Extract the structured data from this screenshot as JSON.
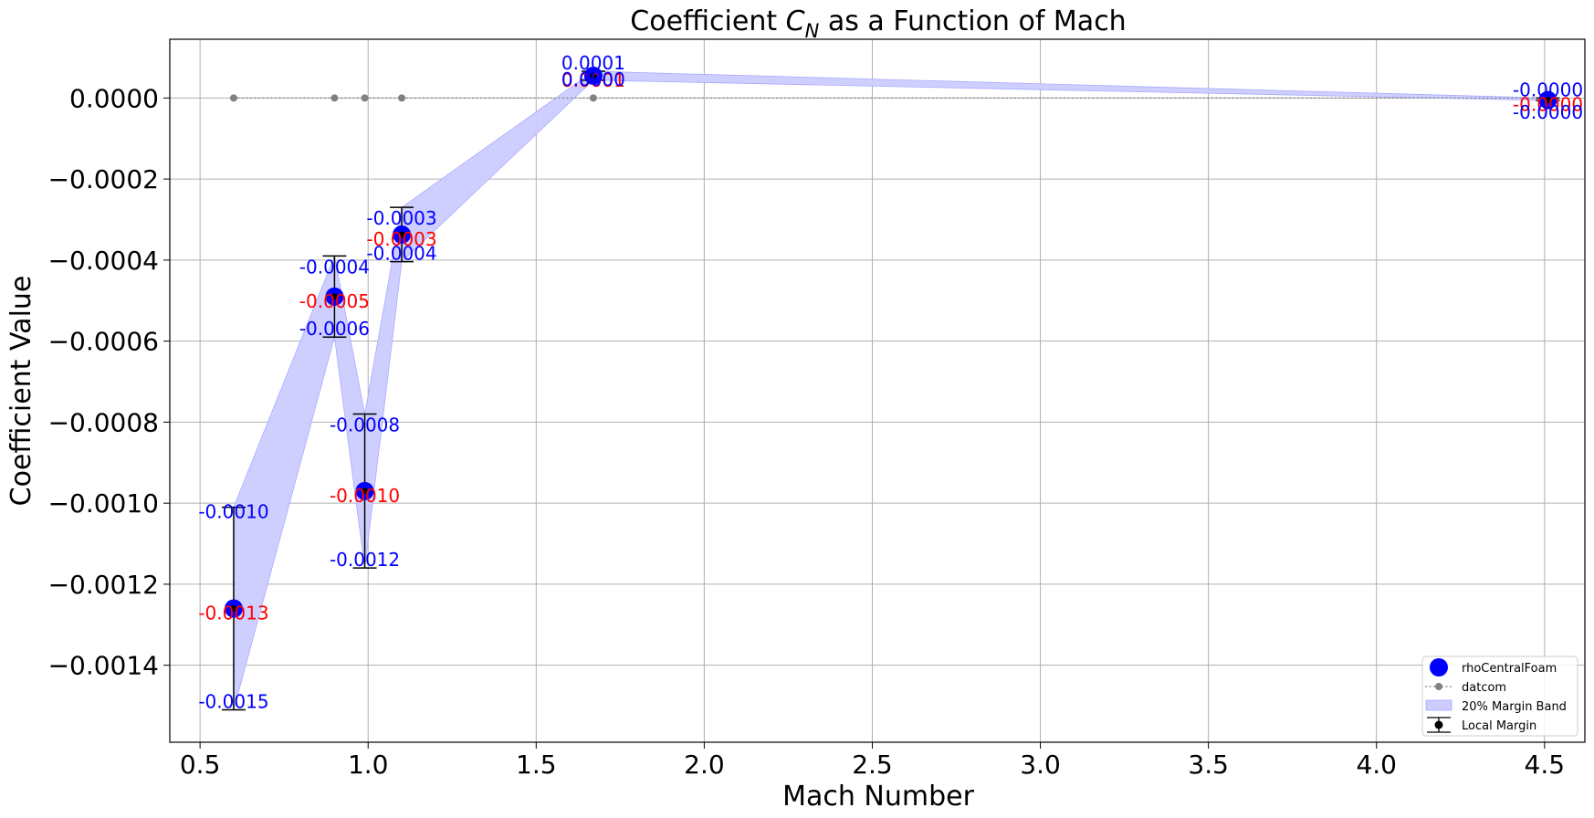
{
  "chart_data": {
    "type": "scatter",
    "title": "Coefficient C_N as a Function of Mach",
    "title_prefix": "Coefficient ",
    "title_symbol": "C",
    "title_subscript": "N",
    "title_suffix": " as a Function of Mach",
    "xlabel": "Mach Number",
    "ylabel": "Coefficient Value",
    "xlim": [
      0.41,
      4.62
    ],
    "ylim": [
      -0.00159,
      0.000145
    ],
    "xticks": [
      0.5,
      1.0,
      1.5,
      2.0,
      2.5,
      3.0,
      3.5,
      4.0,
      4.5
    ],
    "xtick_labels": [
      "0.5",
      "1.0",
      "1.5",
      "2.0",
      "2.5",
      "3.0",
      "3.5",
      "4.0",
      "4.5"
    ],
    "yticks": [
      0.0,
      -0.0002,
      -0.0004,
      -0.0006,
      -0.0008,
      -0.001,
      -0.0012,
      -0.0014
    ],
    "ytick_labels": [
      "0.0000",
      "−0.0002",
      "−0.0004",
      "−0.0006",
      "−0.0008",
      "−0.0010",
      "−0.0012",
      "−0.0014"
    ],
    "grid": true,
    "legend_position": "lower-right",
    "colors": {
      "rho": "#0000ff",
      "datcom": "#808080",
      "band": "#ccccff",
      "band_edge": "#aaaaff",
      "errorbar": "#000000",
      "ann_margin": "#0000ff",
      "ann_value": "#ff0000"
    },
    "series": [
      {
        "name": "rhoCentralFoam",
        "x": [
          0.6,
          0.9,
          0.99,
          1.1,
          1.67,
          4.51
        ],
        "y": [
          -0.00126,
          -0.00049,
          -0.00097,
          -0.000337,
          5.5e-05,
          -5e-06
        ]
      },
      {
        "name": "datcom",
        "x": [
          0.6,
          0.9,
          0.99,
          1.1,
          1.67,
          4.51
        ],
        "y": [
          0.0,
          0.0,
          0.0,
          0.0,
          0.0,
          0.0
        ]
      }
    ],
    "band": {
      "name": "20% Margin Band",
      "x": [
        0.6,
        0.9,
        0.99,
        1.1,
        1.67,
        4.51
      ],
      "upper": [
        -0.00101,
        -0.00039,
        -0.00078,
        -0.00027,
        6.6e-05,
        0.0
      ],
      "lower": [
        -0.00151,
        -0.00059,
        -0.00116,
        -0.000404,
        4.4e-05,
        -6e-06
      ]
    },
    "errorbars": {
      "name": "Local Margin",
      "x": [
        0.6,
        0.9,
        0.99,
        1.1,
        1.67,
        4.51
      ],
      "upper": [
        -0.00101,
        -0.00039,
        -0.00078,
        -0.00027,
        6.6e-05,
        0.0
      ],
      "lower": [
        -0.00151,
        -0.00059,
        -0.00116,
        -0.000404,
        4.4e-05,
        -6e-06
      ]
    },
    "annotations": [
      {
        "x": 0.6,
        "y": -0.00101,
        "text": "-0.0010",
        "kind": "margin",
        "dy": 12
      },
      {
        "x": 0.6,
        "y": -0.00126,
        "text": "-0.0013",
        "kind": "value",
        "dy": 12
      },
      {
        "x": 0.6,
        "y": -0.00151,
        "text": "-0.0015",
        "kind": "margin",
        "dy": -2
      },
      {
        "x": 0.9,
        "y": -0.00039,
        "text": "-0.0004",
        "kind": "margin",
        "dy": 19
      },
      {
        "x": 0.9,
        "y": -0.00049,
        "text": "-0.0005",
        "kind": "value",
        "dy": 12
      },
      {
        "x": 0.9,
        "y": -0.00059,
        "text": "-0.0006",
        "kind": "margin",
        "dy": -2
      },
      {
        "x": 0.99,
        "y": -0.00078,
        "text": "-0.0008",
        "kind": "margin",
        "dy": 19
      },
      {
        "x": 0.99,
        "y": -0.00097,
        "text": "-0.0010",
        "kind": "value",
        "dy": 12
      },
      {
        "x": 0.99,
        "y": -0.00116,
        "text": "-0.0012",
        "kind": "margin",
        "dy": -2
      },
      {
        "x": 1.1,
        "y": -0.00027,
        "text": "-0.0003",
        "kind": "margin",
        "dy": 19
      },
      {
        "x": 1.1,
        "y": -0.000337,
        "text": "-0.0003",
        "kind": "value",
        "dy": 12
      },
      {
        "x": 1.1,
        "y": -0.000404,
        "text": "-0.0004",
        "kind": "margin",
        "dy": -2
      },
      {
        "x": 1.67,
        "y": 6.6e-05,
        "text": "0.0001",
        "kind": "margin",
        "dy": -2
      },
      {
        "x": 1.67,
        "y": 5.5e-05,
        "text": "0.0001",
        "kind": "value",
        "dy": 12
      },
      {
        "x": 1.67,
        "y": 4.4e-05,
        "text": "0.0000",
        "kind": "margin",
        "dy": 6
      },
      {
        "x": 4.51,
        "y": 0.0,
        "text": "-0.0000",
        "kind": "margin",
        "dy": -2
      },
      {
        "x": 4.51,
        "y": -5e-06,
        "text": "-0.0000",
        "kind": "value",
        "dy": 12
      },
      {
        "x": 4.51,
        "y": -6e-06,
        "text": "-0.0000",
        "kind": "margin",
        "dy": 20
      }
    ],
    "legend": [
      {
        "label": "rhoCentralFoam",
        "kind": "marker"
      },
      {
        "label": "datcom",
        "kind": "dotline"
      },
      {
        "label": "20% Margin Band",
        "kind": "patch"
      },
      {
        "label": "Local Margin",
        "kind": "errorbar"
      }
    ]
  }
}
